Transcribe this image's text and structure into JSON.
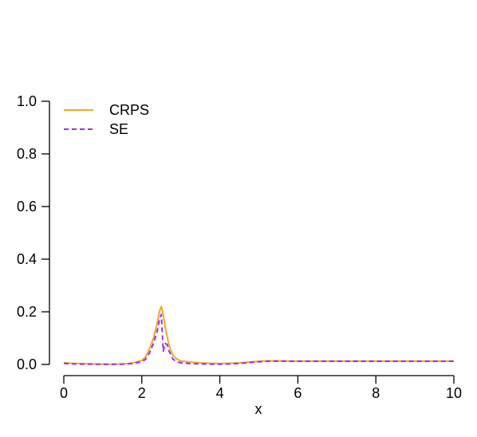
{
  "chart_data": {
    "type": "line",
    "title": "",
    "xlabel": "x",
    "ylabel": "",
    "xlim": [
      0,
      10
    ],
    "ylim": [
      0,
      1
    ],
    "xticks": [
      0,
      2,
      4,
      6,
      8,
      10
    ],
    "yticks": [
      0.0,
      0.2,
      0.4,
      0.6,
      0.8,
      1.0
    ],
    "xtick_labels": [
      "0",
      "2",
      "4",
      "6",
      "8",
      "10"
    ],
    "ytick_labels": [
      "0.0",
      "0.2",
      "0.4",
      "0.6",
      "0.8",
      "1.0"
    ],
    "grid": false,
    "legend_position": "top-left",
    "series": [
      {
        "name": "CRPS",
        "color": "#f5a623",
        "dash": "solid",
        "x": [
          0,
          0.25,
          0.5,
          0.75,
          1,
          1.25,
          1.5,
          1.75,
          2,
          2.1,
          2.2,
          2.3,
          2.4,
          2.45,
          2.5,
          2.55,
          2.6,
          2.7,
          2.8,
          2.9,
          3,
          3.25,
          3.5,
          3.75,
          4,
          4.25,
          4.5,
          4.75,
          5,
          5.25,
          5.5,
          5.75,
          6,
          6.5,
          7,
          7.5,
          8,
          8.5,
          9,
          9.5,
          10
        ],
        "y": [
          0.006,
          0.004,
          0.003,
          0.002,
          0.001,
          0.001,
          0.002,
          0.005,
          0.015,
          0.03,
          0.06,
          0.1,
          0.16,
          0.2,
          0.22,
          0.19,
          0.14,
          0.07,
          0.035,
          0.02,
          0.013,
          0.009,
          0.006,
          0.004,
          0.003,
          0.004,
          0.006,
          0.009,
          0.012,
          0.014,
          0.014,
          0.013,
          0.013,
          0.013,
          0.013,
          0.013,
          0.013,
          0.013,
          0.013,
          0.013,
          0.013
        ]
      },
      {
        "name": "SE",
        "color": "#9b30e8",
        "dash": "dashed",
        "x": [
          0,
          0.25,
          0.5,
          0.75,
          1,
          1.25,
          1.5,
          1.75,
          2,
          2.1,
          2.2,
          2.3,
          2.4,
          2.45,
          2.5,
          2.55,
          2.6,
          2.65,
          2.7,
          2.8,
          2.9,
          3,
          3.25,
          3.5,
          3.75,
          4,
          4.25,
          4.5,
          4.75,
          5,
          5.25,
          5.5,
          5.75,
          6,
          6.5,
          7,
          7.5,
          8,
          8.5,
          9,
          9.5,
          10
        ],
        "y": [
          0.004,
          0.002,
          0.001,
          0.001,
          0.0005,
          0.0005,
          0.001,
          0.003,
          0.01,
          0.02,
          0.045,
          0.08,
          0.13,
          0.17,
          0.19,
          0.05,
          0.08,
          0.075,
          0.05,
          0.02,
          0.01,
          0.006,
          0.003,
          0.002,
          0.001,
          0.001,
          0.002,
          0.004,
          0.007,
          0.01,
          0.012,
          0.012,
          0.012,
          0.012,
          0.012,
          0.012,
          0.012,
          0.012,
          0.012,
          0.012,
          0.012,
          0.012
        ]
      }
    ]
  }
}
